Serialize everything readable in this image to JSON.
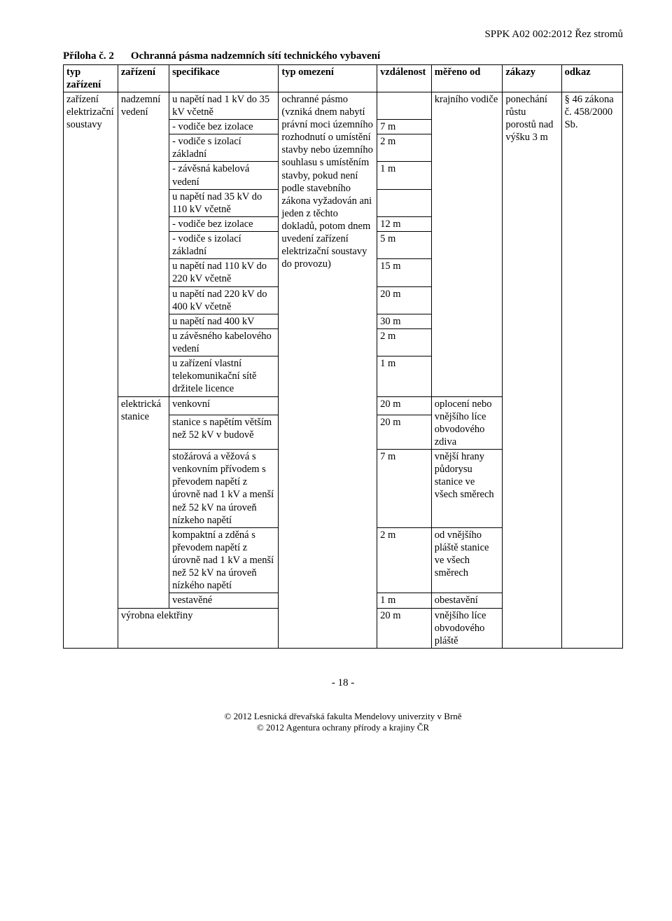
{
  "doc_header": "SPPK A02 002:2012 Řez stromů",
  "heading_left": "Příloha č. 2",
  "heading_right": "Ochranná pásma nadzemních sítí technického vybavení",
  "columns": {
    "typ_zarizeni": "typ zařízení",
    "zarizeni": "zařízení",
    "specifikace": "specifikace",
    "typ_omezeni": "typ omezení",
    "vzdalenost": "vzdálenost",
    "mereno_od": "měřeno od",
    "zakazy": "zákazy",
    "odkaz": "odkaz"
  },
  "col1_zarizeni_elektrizacni": "zařízení elektrizační soustavy",
  "col2_nadzemni_vedeni": "nadzemní vedení",
  "col2_elektricka_stanice": "elektrická stanice",
  "col2_vyrobna_elektriny": "výrobna elektřiny",
  "spec": {
    "r1": "u napětí nad 1 kV do 35 kV včetně",
    "r2": "- vodiče bez izolace",
    "r3": "- vodiče s izolací základní",
    "r4": " - závěsná kabelová vedení",
    "r5": "u napětí nad 35 kV do 110 kV včetně",
    "r6": "- vodiče bez izolace",
    "r7": "- vodiče s izolací základní",
    "r8": "u napětí nad 110 kV do 220 kV včetně",
    "r9": "u napětí nad 220 kV do 400 kV včetně",
    "r10": "u napětí nad 400 kV",
    "r11": "u závěsného kabelového vedení",
    "r12": "u zařízení vlastní telekomunikační sítě držitele licence",
    "r13": "venkovní",
    "r14": "stanice s napětím větším než 52 kV v budově",
    "r15": "stožárová a věžová s venkovním přívodem s převodem napětí z úrovně nad 1 kV a menší než 52 kV na úroveň nízkeho napětí",
    "r16": "kompaktní a zděná s převodem napětí z úrovně nad 1 kV a menší než 52 kV na úroveň nízkého napětí",
    "r17": "vestavěné"
  },
  "omez_block": "ochranné pásmo (vzniká dnem nabytí právní moci územního rozhodnutí o umístění stavby nebo územního souhlasu s umístěním stavby, pokud není podle stavebního zákona vyžadován ani jeden z těchto dokladů, potom dnem uvedení zařízení elektrizační soustavy do provozu)",
  "vzd": {
    "r1": "",
    "r2": "7 m",
    "r3": "2 m",
    "r4": "1 m",
    "r5": "",
    "r6": "12 m",
    "r7": "5 m",
    "r8": "15 m",
    "r9": "20 m",
    "r10": "30 m",
    "r11": "2 m",
    "r12": "1 m",
    "r13": "20 m",
    "r14": "20 m",
    "r15": "7 m",
    "r16": "2 m",
    "r17": "1 m",
    "r18": "20 m"
  },
  "mereno": {
    "krajni_vodice": "krajního vodiče",
    "oploceni": "oplocení nebo vnějšího líce obvodového zdiva",
    "vnejsi_hrany": "vnější hrany půdorysu stanice ve všech směrech",
    "od_vnejsiho": "od vnějšího pláště stanice ve všech směrech",
    "obestaveni": "obestavění",
    "vnejsiho_lice": "vnějšího líce obvodového pláště"
  },
  "zakazy_text": "ponechání růstu porostů nad výšku 3 m",
  "odkaz_text": "§ 46 zákona č. 458/2000 Sb.",
  "page_number": "- 18 -",
  "footer_line1": "© 2012  Lesnická dřevařská fakulta Mendelovy univerzity v Brně",
  "footer_line2": "© 2012  Agentura ochrany přírody a krajiny ČR"
}
